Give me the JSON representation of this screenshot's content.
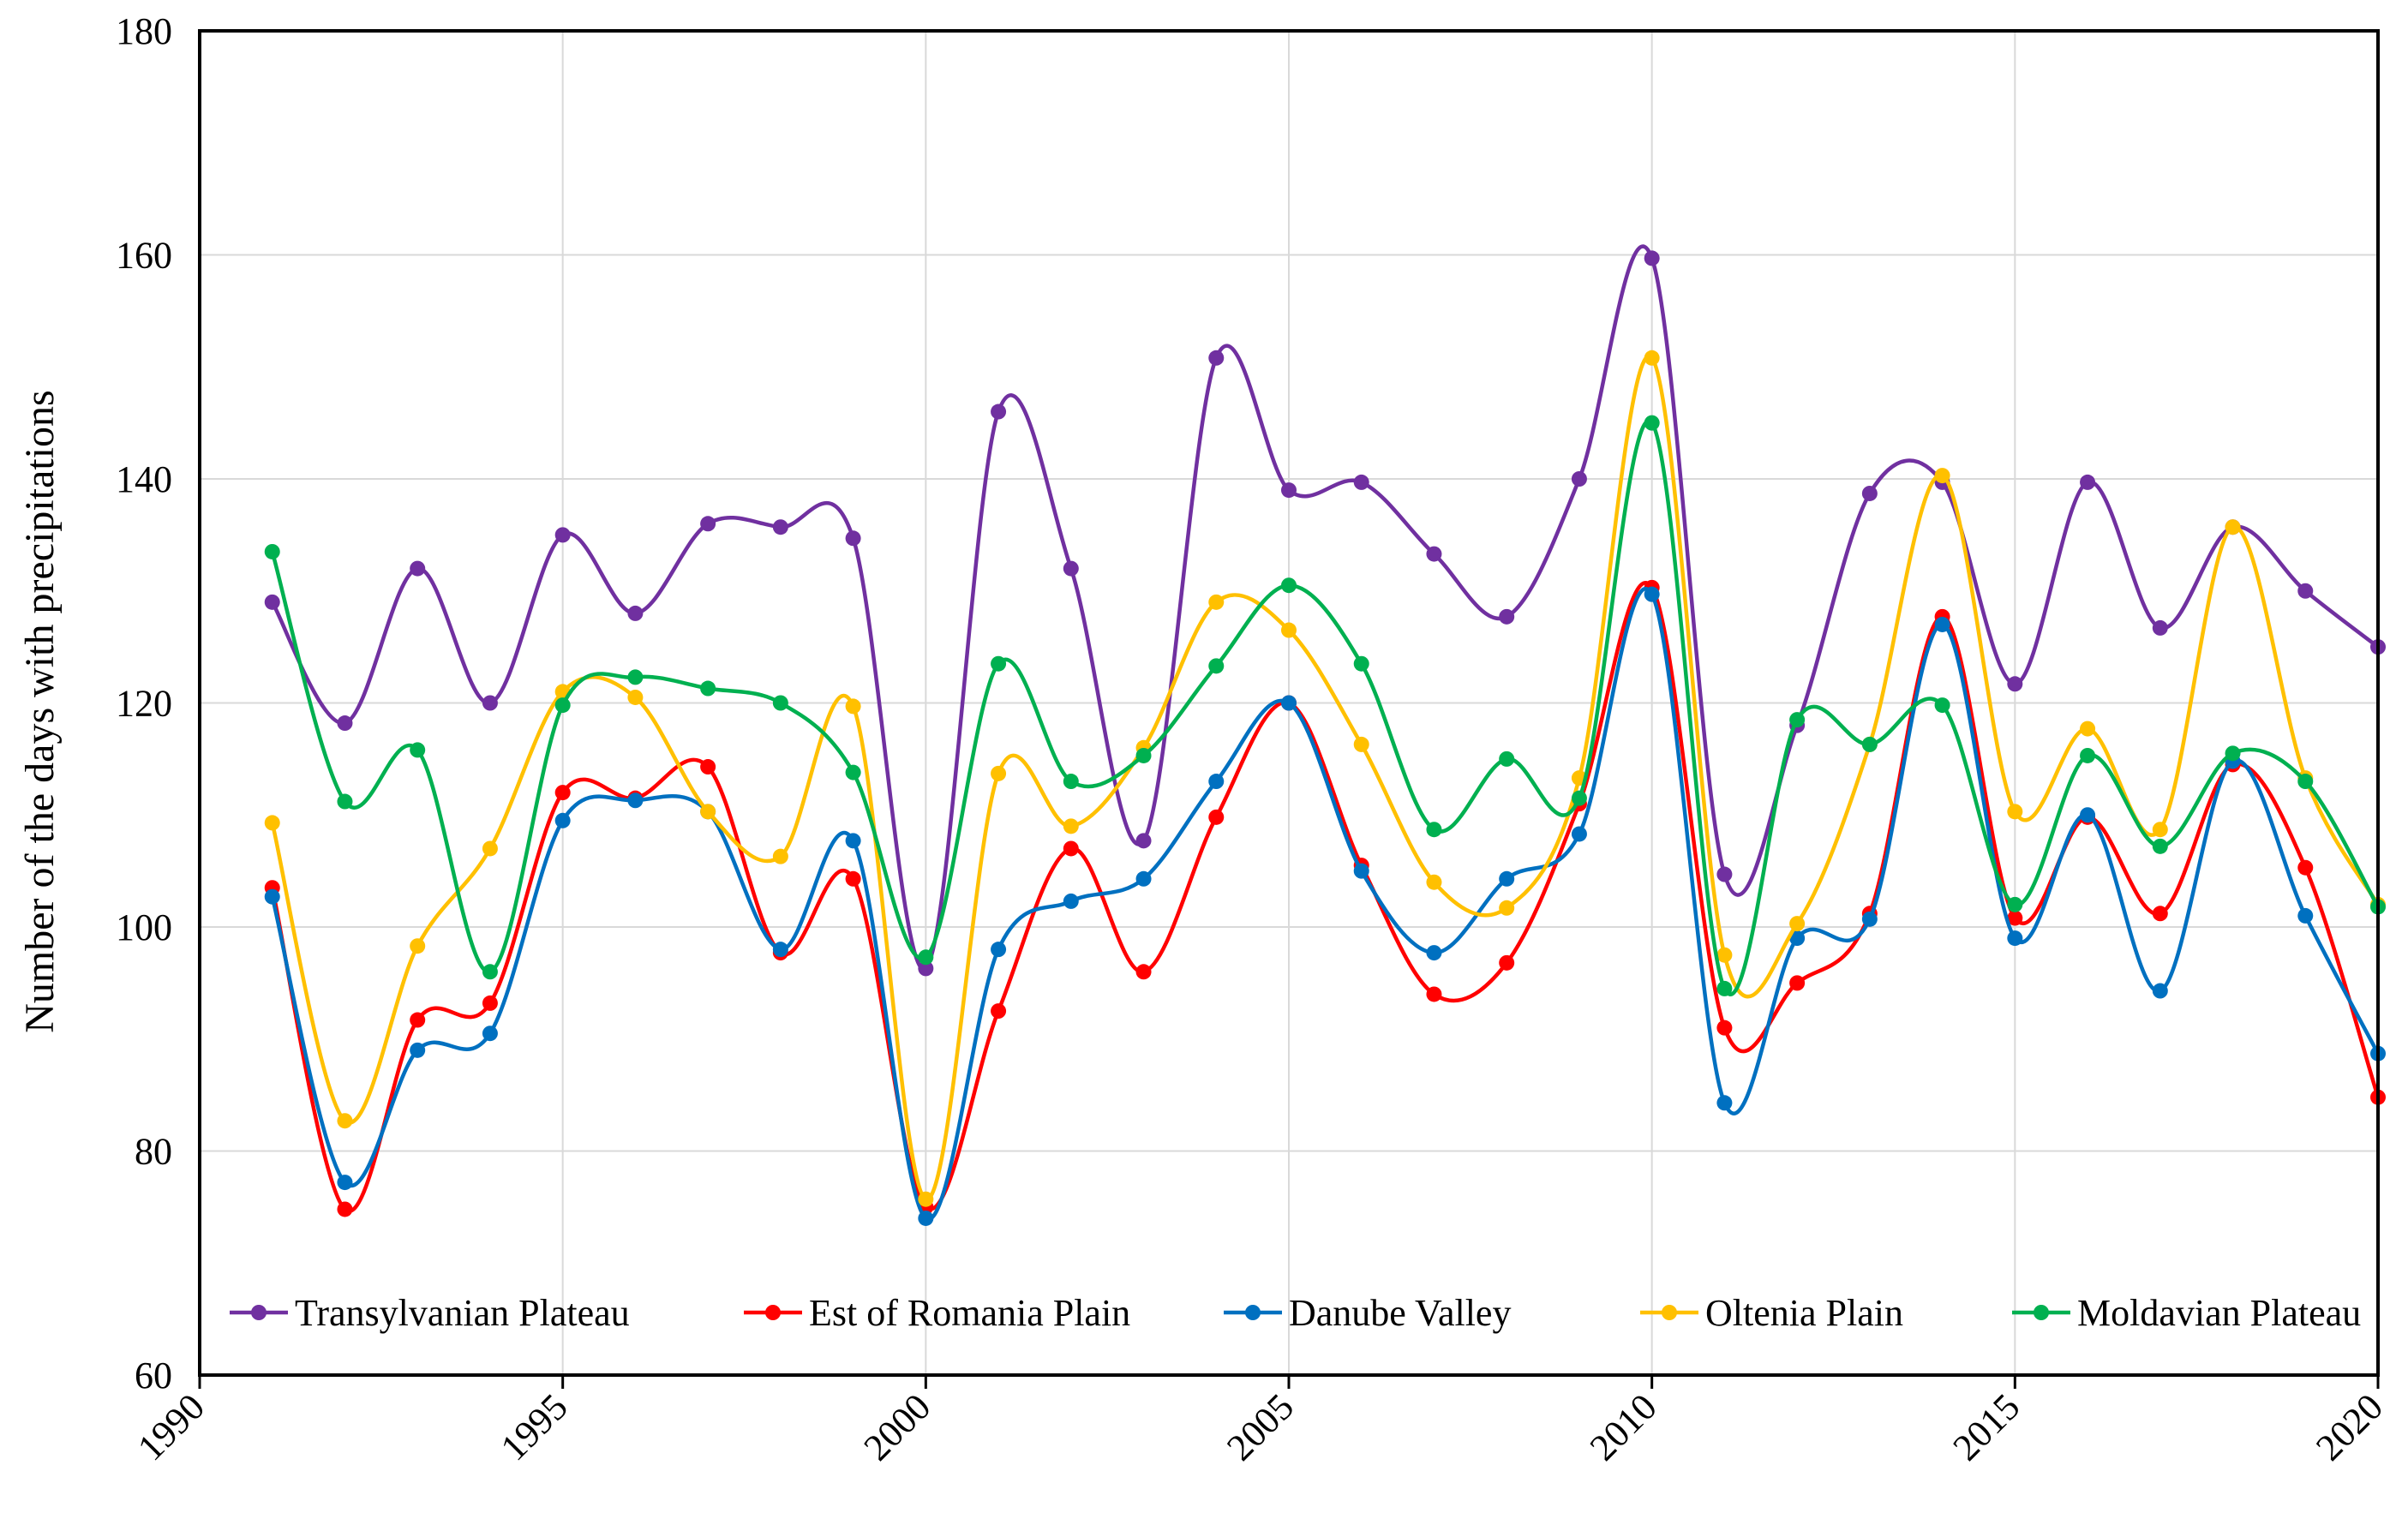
{
  "chart_data": {
    "type": "line",
    "title": "",
    "xlabel": "",
    "ylabel": "Number of the days with precipitations",
    "xlim": [
      1990,
      2020
    ],
    "ylim": [
      60,
      180
    ],
    "xticks": [
      1990,
      1995,
      2000,
      2005,
      2010,
      2015,
      2020
    ],
    "yticks": [
      60,
      80,
      100,
      120,
      140,
      160,
      180
    ],
    "grid": true,
    "legend_position": "bottom-inside",
    "x": [
      1991,
      1992,
      1993,
      1994,
      1995,
      1996,
      1997,
      1998,
      1999,
      2000,
      2001,
      2002,
      2003,
      2004,
      2005,
      2006,
      2007,
      2008,
      2009,
      2010,
      2011,
      2012,
      2013,
      2014,
      2015,
      2016,
      2017,
      2018,
      2019,
      2020
    ],
    "series": [
      {
        "name": "Transylvanian Plateau",
        "color": "#7030a0",
        "values": [
          129,
          118.2,
          132,
          120,
          135,
          128,
          136,
          135.7,
          134.7,
          96.3,
          146,
          132,
          107.7,
          150.8,
          139,
          139.7,
          133.3,
          127.7,
          140,
          159.7,
          104.7,
          118,
          138.7,
          139.7,
          121.7,
          139.7,
          126.7,
          135.7,
          130,
          125
        ]
      },
      {
        "name": "Est of Romania Plain",
        "color": "#ff0000",
        "values": [
          103.5,
          74.8,
          91.7,
          93.2,
          112,
          111.5,
          114.3,
          97.7,
          104.3,
          75,
          92.5,
          107,
          96,
          109.8,
          120,
          105.5,
          94,
          96.8,
          111,
          130.3,
          91,
          95,
          101.2,
          127.7,
          100.8,
          109.8,
          101.2,
          114.5,
          105.3,
          84.8
        ]
      },
      {
        "name": "Danube Valley",
        "color": "#0070c0",
        "values": [
          102.7,
          77.2,
          89,
          90.5,
          109.5,
          111.3,
          110.3,
          98,
          107.7,
          74,
          98,
          102.3,
          104.3,
          113,
          120,
          105,
          97.7,
          104.3,
          108.3,
          129.7,
          84.3,
          99,
          100.7,
          127,
          99,
          110,
          94.3,
          114.8,
          101,
          88.7
        ]
      },
      {
        "name": "Oltenia Plain",
        "color": "#ffc000",
        "values": [
          109.3,
          82.7,
          98.3,
          107,
          121,
          120.5,
          110.3,
          106.3,
          119.7,
          75.7,
          113.7,
          109,
          116,
          129,
          126.5,
          116.3,
          104,
          101.7,
          113.3,
          150.8,
          97.5,
          100.3,
          116.3,
          140.3,
          110.3,
          117.7,
          108.7,
          135.7,
          113.3,
          102
        ]
      },
      {
        "name": "Moldavian Plateau",
        "color": "#00b050",
        "values": [
          133.5,
          111.2,
          115.8,
          96,
          119.8,
          122.3,
          121.3,
          120,
          113.8,
          97.3,
          123.5,
          113,
          115.3,
          123.3,
          130.5,
          123.5,
          108.7,
          115,
          111.5,
          145,
          94.5,
          118.5,
          116.3,
          119.8,
          102,
          115.3,
          107.2,
          115.5,
          113,
          101.8
        ]
      }
    ]
  }
}
